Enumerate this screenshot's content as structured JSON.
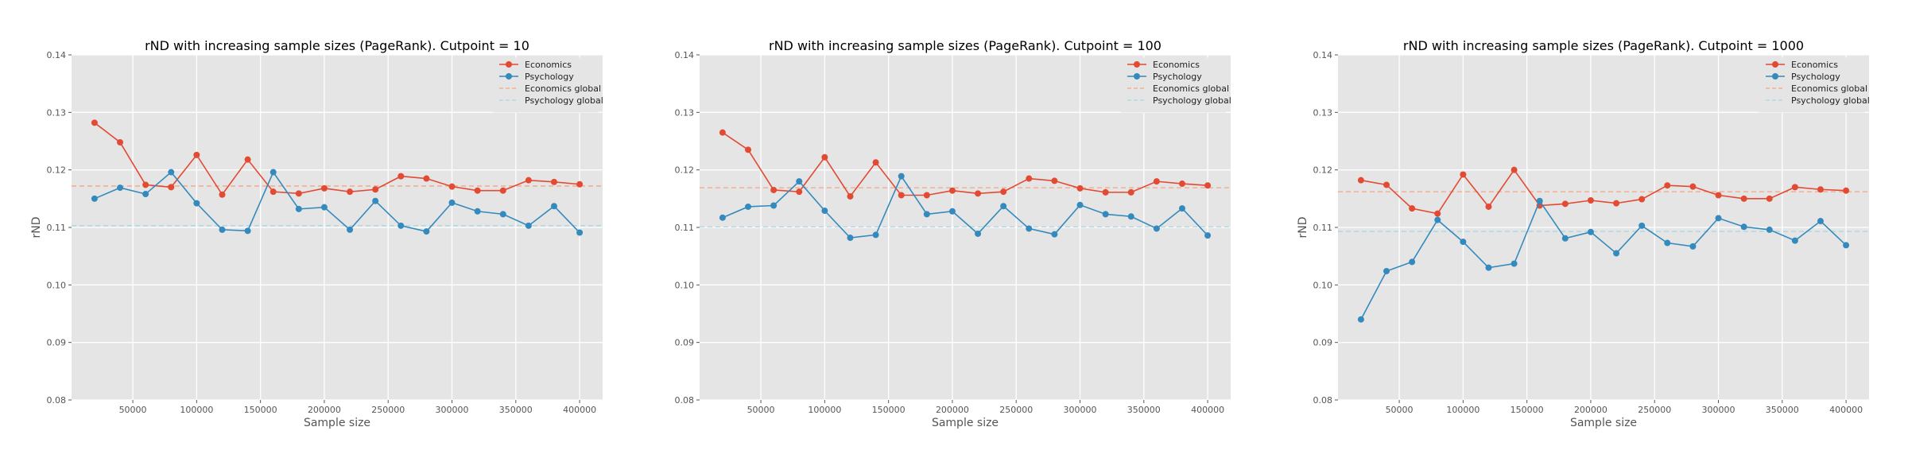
{
  "colors": {
    "economics": "#e24a33",
    "psychology": "#348abd",
    "economics_global": "#f4a582",
    "psychology_global": "#a6d8e4"
  },
  "chart_data": [
    {
      "type": "line",
      "title": "rND with increasing sample sizes (PageRank). Cutpoint = 10",
      "xlabel": "Sample size",
      "ylabel": "rND",
      "xlim": [
        2000,
        418000
      ],
      "ylim": [
        0.08,
        0.14
      ],
      "xticks": [
        50000,
        100000,
        150000,
        200000,
        250000,
        300000,
        350000,
        400000
      ],
      "yticks": [
        0.08,
        0.09,
        0.1,
        0.11,
        0.12,
        0.13,
        0.14
      ],
      "xtick_labels": [
        "50000",
        "100000",
        "150000",
        "200000",
        "250000",
        "300000",
        "350000",
        "400000"
      ],
      "ytick_labels": [
        "0.08",
        "0.09",
        "0.10",
        "0.11",
        "0.12",
        "0.13",
        "0.14"
      ],
      "grid": true,
      "legend": "top-right",
      "x": [
        20000,
        40000,
        60000,
        80000,
        100000,
        120000,
        140000,
        160000,
        180000,
        200000,
        220000,
        240000,
        260000,
        280000,
        300000,
        320000,
        340000,
        360000,
        380000,
        400000
      ],
      "series": [
        {
          "name": "Economics",
          "color_key": "economics",
          "values": [
            0.1282,
            0.1248,
            0.1174,
            0.117,
            0.1226,
            0.1157,
            0.1218,
            0.1162,
            0.1159,
            0.1168,
            0.1162,
            0.1166,
            0.1189,
            0.1185,
            0.1171,
            0.1164,
            0.1164,
            0.1182,
            0.1179,
            0.1175
          ]
        },
        {
          "name": "Psychology",
          "color_key": "psychology",
          "values": [
            0.115,
            0.1169,
            0.1158,
            0.1196,
            0.1142,
            0.1096,
            0.1094,
            0.1196,
            0.1132,
            0.1135,
            0.1096,
            0.1146,
            0.1103,
            0.1093,
            0.1143,
            0.1128,
            0.1123,
            0.1103,
            0.1137,
            0.1091
          ]
        }
      ],
      "reference_lines": [
        {
          "name": "Economics global",
          "color_key": "economics_global",
          "value": 0.1172
        },
        {
          "name": "Psychology global",
          "color_key": "psychology_global",
          "value": 0.1103
        }
      ]
    },
    {
      "type": "line",
      "title": "rND with increasing sample sizes (PageRank). Cutpoint = 100",
      "xlabel": "Sample size",
      "ylabel": "",
      "xlim": [
        2000,
        418000
      ],
      "ylim": [
        0.08,
        0.14
      ],
      "xticks": [
        50000,
        100000,
        150000,
        200000,
        250000,
        300000,
        350000,
        400000
      ],
      "yticks": [
        0.08,
        0.09,
        0.1,
        0.11,
        0.12,
        0.13,
        0.14
      ],
      "xtick_labels": [
        "50000",
        "100000",
        "150000",
        "200000",
        "250000",
        "300000",
        "350000",
        "400000"
      ],
      "ytick_labels": [
        "0.08",
        "0.09",
        "0.10",
        "0.11",
        "0.12",
        "0.13",
        "0.14"
      ],
      "grid": true,
      "legend": "top-right",
      "x": [
        20000,
        40000,
        60000,
        80000,
        100000,
        120000,
        140000,
        160000,
        180000,
        200000,
        220000,
        240000,
        260000,
        280000,
        300000,
        320000,
        340000,
        360000,
        380000,
        400000
      ],
      "series": [
        {
          "name": "Economics",
          "color_key": "economics",
          "values": [
            0.1265,
            0.1235,
            0.1165,
            0.1162,
            0.1222,
            0.1154,
            0.1213,
            0.1156,
            0.1156,
            0.1164,
            0.1159,
            0.1162,
            0.1185,
            0.1181,
            0.1168,
            0.1161,
            0.1161,
            0.118,
            0.1176,
            0.1173
          ]
        },
        {
          "name": "Psychology",
          "color_key": "psychology",
          "values": [
            0.1117,
            0.1136,
            0.1138,
            0.118,
            0.1129,
            0.1082,
            0.1087,
            0.1189,
            0.1123,
            0.1128,
            0.1089,
            0.1137,
            0.1098,
            0.1088,
            0.1139,
            0.1123,
            0.1119,
            0.1098,
            0.1133,
            0.1086
          ]
        }
      ],
      "reference_lines": [
        {
          "name": "Economics global",
          "color_key": "economics_global",
          "value": 0.1169
        },
        {
          "name": "Psychology global",
          "color_key": "psychology_global",
          "value": 0.1101
        }
      ]
    },
    {
      "type": "line",
      "title": "rND with increasing sample sizes (PageRank). Cutpoint = 1000",
      "xlabel": "Sample size",
      "ylabel": "rND",
      "xlim": [
        2000,
        418000
      ],
      "ylim": [
        0.08,
        0.14
      ],
      "xticks": [
        50000,
        100000,
        150000,
        200000,
        250000,
        300000,
        350000,
        400000
      ],
      "yticks": [
        0.08,
        0.09,
        0.1,
        0.11,
        0.12,
        0.13,
        0.14
      ],
      "xtick_labels": [
        "50000",
        "100000",
        "150000",
        "200000",
        "250000",
        "300000",
        "350000",
        "400000"
      ],
      "ytick_labels": [
        "0.08",
        "0.09",
        "0.10",
        "0.11",
        "0.12",
        "0.13",
        "0.14"
      ],
      "grid": true,
      "legend": "top-right",
      "x": [
        20000,
        40000,
        60000,
        80000,
        100000,
        120000,
        140000,
        160000,
        180000,
        200000,
        220000,
        240000,
        260000,
        280000,
        300000,
        320000,
        340000,
        360000,
        380000,
        400000
      ],
      "series": [
        {
          "name": "Economics",
          "color_key": "economics",
          "values": [
            0.1182,
            0.1174,
            0.1133,
            0.1124,
            0.1192,
            0.1136,
            0.12,
            0.1138,
            0.1141,
            0.1147,
            0.1142,
            0.1149,
            0.1173,
            0.1171,
            0.1156,
            0.115,
            0.115,
            0.117,
            0.1166,
            0.1164
          ]
        },
        {
          "name": "Psychology",
          "color_key": "psychology",
          "values": [
            0.094,
            0.1024,
            0.104,
            0.1113,
            0.1075,
            0.103,
            0.1037,
            0.1146,
            0.1081,
            0.1092,
            0.1055,
            0.1103,
            0.1073,
            0.1067,
            0.1116,
            0.1101,
            0.1096,
            0.1077,
            0.1111,
            0.1069
          ]
        }
      ],
      "reference_lines": [
        {
          "name": "Economics global",
          "color_key": "economics_global",
          "value": 0.1162
        },
        {
          "name": "Psychology global",
          "color_key": "psychology_global",
          "value": 0.1093
        }
      ]
    }
  ]
}
